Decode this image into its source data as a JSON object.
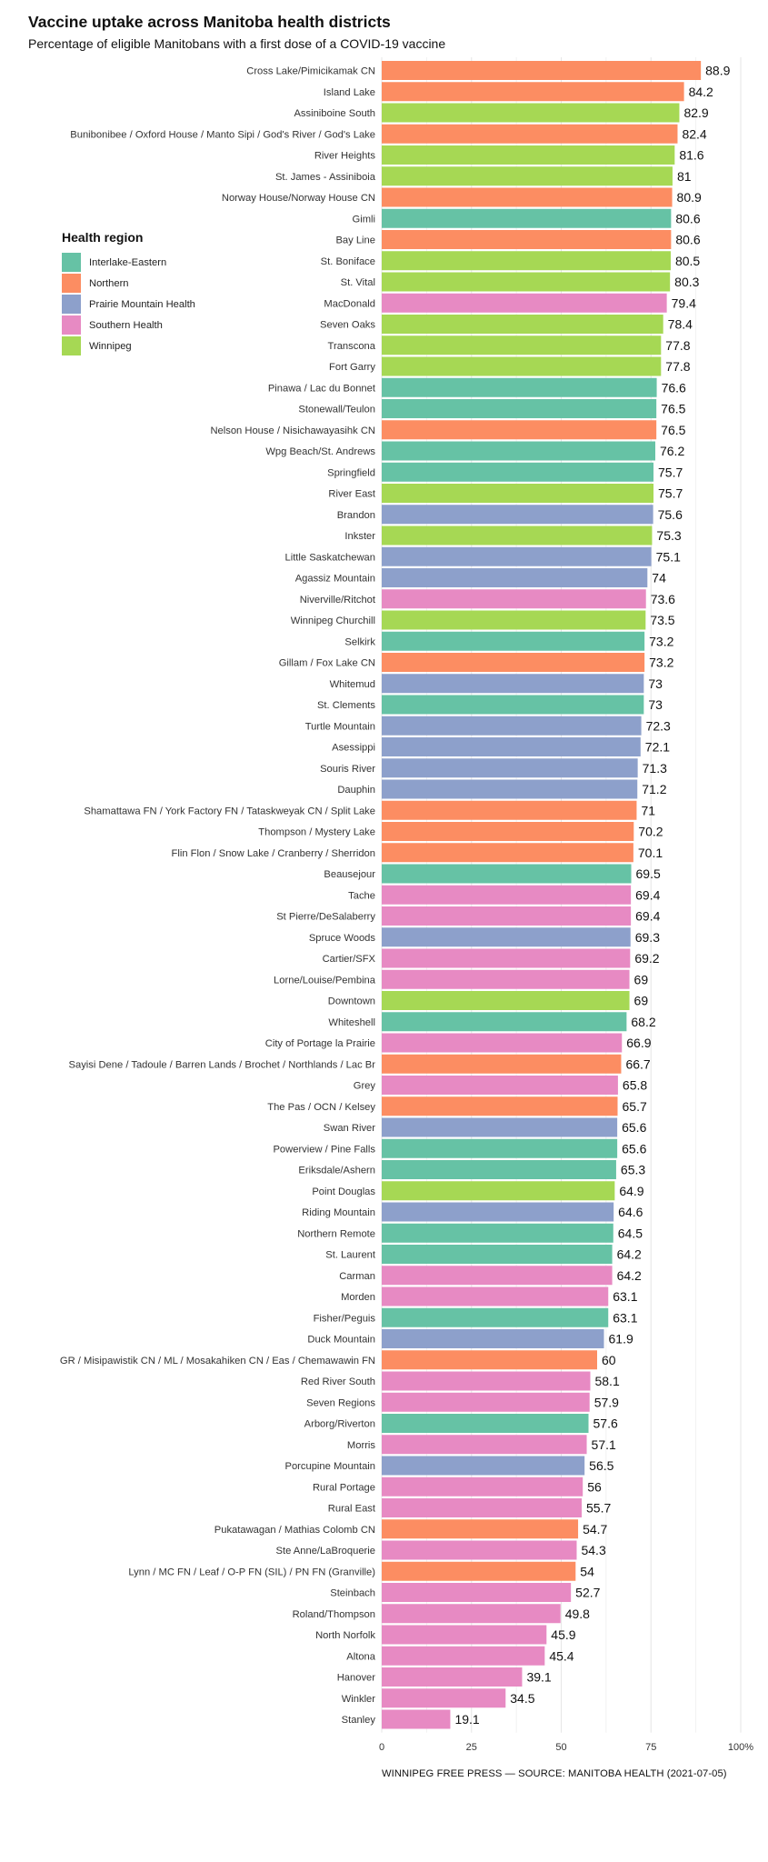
{
  "title": "Vaccine uptake across Manitoba health districts",
  "subtitle": "Percentage of eligible Manitobans with a first dose of a COVID-19 vaccine",
  "source": "WINNIPEG FREE PRESS — SOURCE: MANITOBA HEALTH (2021-07-05)",
  "legend": {
    "title": "Health region",
    "items": [
      {
        "name": "Interlake-Eastern",
        "color": "#66c2a5"
      },
      {
        "name": "Northern",
        "color": "#fc8d62"
      },
      {
        "name": "Prairie Mountain Health",
        "color": "#8da0cb"
      },
      {
        "name": "Southern Health",
        "color": "#e78ac3"
      },
      {
        "name": "Winnipeg",
        "color": "#a6d854"
      }
    ]
  },
  "chart_data": {
    "type": "bar",
    "orientation": "horizontal",
    "title": "Vaccine uptake across Manitoba health districts",
    "subtitle": "Percentage of eligible Manitobans with a first dose of a COVID-19 vaccine",
    "xlim": [
      0,
      100
    ],
    "x_ticks": [
      "0",
      "25",
      "50",
      "75",
      "100%"
    ],
    "grid": "vertical",
    "legend_position": "top-left",
    "region_colors": {
      "Interlake-Eastern": "#66c2a5",
      "Northern": "#fc8d62",
      "Prairie Mountain Health": "#8da0cb",
      "Southern Health": "#e78ac3",
      "Winnipeg": "#a6d854"
    },
    "bars": [
      {
        "district": "Cross Lake/Pimicikamak CN",
        "value": 88.9,
        "value_label": "88.9",
        "region": "Northern"
      },
      {
        "district": "Island Lake",
        "value": 84.2,
        "value_label": "84.2",
        "region": "Northern"
      },
      {
        "district": "Assiniboine South",
        "value": 82.9,
        "value_label": "82.9",
        "region": "Winnipeg"
      },
      {
        "district": "Bunibonibee / Oxford House / Manto Sipi / God's River / God's Lake",
        "value": 82.4,
        "value_label": "82.4",
        "region": "Northern"
      },
      {
        "district": "River Heights",
        "value": 81.6,
        "value_label": "81.6",
        "region": "Winnipeg"
      },
      {
        "district": "St. James - Assiniboia",
        "value": 81,
        "value_label": "81",
        "region": "Winnipeg"
      },
      {
        "district": "Norway House/Norway House CN",
        "value": 80.9,
        "value_label": "80.9",
        "region": "Northern"
      },
      {
        "district": "Gimli",
        "value": 80.6,
        "value_label": "80.6",
        "region": "Interlake-Eastern"
      },
      {
        "district": "Bay Line",
        "value": 80.6,
        "value_label": "80.6",
        "region": "Northern"
      },
      {
        "district": "St. Boniface",
        "value": 80.5,
        "value_label": "80.5",
        "region": "Winnipeg"
      },
      {
        "district": "St. Vital",
        "value": 80.3,
        "value_label": "80.3",
        "region": "Winnipeg"
      },
      {
        "district": "MacDonald",
        "value": 79.4,
        "value_label": "79.4",
        "region": "Southern Health"
      },
      {
        "district": "Seven Oaks",
        "value": 78.4,
        "value_label": "78.4",
        "region": "Winnipeg"
      },
      {
        "district": "Transcona",
        "value": 77.8,
        "value_label": "77.8",
        "region": "Winnipeg"
      },
      {
        "district": "Fort Garry",
        "value": 77.8,
        "value_label": "77.8",
        "region": "Winnipeg"
      },
      {
        "district": "Pinawa / Lac du Bonnet",
        "value": 76.6,
        "value_label": "76.6",
        "region": "Interlake-Eastern"
      },
      {
        "district": "Stonewall/Teulon",
        "value": 76.5,
        "value_label": "76.5",
        "region": "Interlake-Eastern"
      },
      {
        "district": "Nelson House / Nisichawayasihk CN",
        "value": 76.5,
        "value_label": "76.5",
        "region": "Northern"
      },
      {
        "district": "Wpg Beach/St. Andrews",
        "value": 76.2,
        "value_label": "76.2",
        "region": "Interlake-Eastern"
      },
      {
        "district": "Springfield",
        "value": 75.7,
        "value_label": "75.7",
        "region": "Interlake-Eastern"
      },
      {
        "district": "River East",
        "value": 75.7,
        "value_label": "75.7",
        "region": "Winnipeg"
      },
      {
        "district": "Brandon",
        "value": 75.6,
        "value_label": "75.6",
        "region": "Prairie Mountain Health"
      },
      {
        "district": "Inkster",
        "value": 75.3,
        "value_label": "75.3",
        "region": "Winnipeg"
      },
      {
        "district": "Little Saskatchewan",
        "value": 75.1,
        "value_label": "75.1",
        "region": "Prairie Mountain Health"
      },
      {
        "district": "Agassiz Mountain",
        "value": 74,
        "value_label": "74",
        "region": "Prairie Mountain Health"
      },
      {
        "district": "Niverville/Ritchot",
        "value": 73.6,
        "value_label": "73.6",
        "region": "Southern Health"
      },
      {
        "district": "Winnipeg Churchill",
        "value": 73.5,
        "value_label": "73.5",
        "region": "Winnipeg"
      },
      {
        "district": "Selkirk",
        "value": 73.2,
        "value_label": "73.2",
        "region": "Interlake-Eastern"
      },
      {
        "district": "Gillam / Fox Lake CN",
        "value": 73.2,
        "value_label": "73.2",
        "region": "Northern"
      },
      {
        "district": "Whitemud",
        "value": 73,
        "value_label": "73",
        "region": "Prairie Mountain Health"
      },
      {
        "district": "St. Clements",
        "value": 73,
        "value_label": "73",
        "region": "Interlake-Eastern"
      },
      {
        "district": "Turtle Mountain",
        "value": 72.3,
        "value_label": "72.3",
        "region": "Prairie Mountain Health"
      },
      {
        "district": "Asessippi",
        "value": 72.1,
        "value_label": "72.1",
        "region": "Prairie Mountain Health"
      },
      {
        "district": "Souris River",
        "value": 71.3,
        "value_label": "71.3",
        "region": "Prairie Mountain Health"
      },
      {
        "district": "Dauphin",
        "value": 71.2,
        "value_label": "71.2",
        "region": "Prairie Mountain Health"
      },
      {
        "district": "Shamattawa FN / York Factory FN  / Tataskweyak CN / Split Lake",
        "value": 71,
        "value_label": "71",
        "region": "Northern"
      },
      {
        "district": "Thompson / Mystery Lake",
        "value": 70.2,
        "value_label": "70.2",
        "region": "Northern"
      },
      {
        "district": "Flin Flon / Snow Lake / Cranberry / Sherridon",
        "value": 70.1,
        "value_label": "70.1",
        "region": "Northern"
      },
      {
        "district": "Beausejour",
        "value": 69.5,
        "value_label": "69.5",
        "region": "Interlake-Eastern"
      },
      {
        "district": "Tache",
        "value": 69.4,
        "value_label": "69.4",
        "region": "Southern Health"
      },
      {
        "district": "St Pierre/DeSalaberry",
        "value": 69.4,
        "value_label": "69.4",
        "region": "Southern Health"
      },
      {
        "district": "Spruce Woods",
        "value": 69.3,
        "value_label": "69.3",
        "region": "Prairie Mountain Health"
      },
      {
        "district": "Cartier/SFX",
        "value": 69.2,
        "value_label": "69.2",
        "region": "Southern Health"
      },
      {
        "district": "Lorne/Louise/Pembina",
        "value": 69,
        "value_label": "69",
        "region": "Southern Health"
      },
      {
        "district": "Downtown",
        "value": 69,
        "value_label": "69",
        "region": "Winnipeg"
      },
      {
        "district": "Whiteshell",
        "value": 68.2,
        "value_label": "68.2",
        "region": "Interlake-Eastern"
      },
      {
        "district": "City of Portage la Prairie",
        "value": 66.9,
        "value_label": "66.9",
        "region": "Southern Health"
      },
      {
        "district": "Sayisi Dene / Tadoule / Barren Lands / Brochet / Northlands / Lac Br",
        "value": 66.7,
        "value_label": "66.7",
        "region": "Northern"
      },
      {
        "district": "Grey",
        "value": 65.8,
        "value_label": "65.8",
        "region": "Southern Health"
      },
      {
        "district": "The Pas / OCN / Kelsey",
        "value": 65.7,
        "value_label": "65.7",
        "region": "Northern"
      },
      {
        "district": "Swan River",
        "value": 65.6,
        "value_label": "65.6",
        "region": "Prairie Mountain Health"
      },
      {
        "district": "Powerview / Pine Falls",
        "value": 65.6,
        "value_label": "65.6",
        "region": "Interlake-Eastern"
      },
      {
        "district": "Eriksdale/Ashern",
        "value": 65.3,
        "value_label": "65.3",
        "region": "Interlake-Eastern"
      },
      {
        "district": "Point Douglas",
        "value": 64.9,
        "value_label": "64.9",
        "region": "Winnipeg"
      },
      {
        "district": "Riding Mountain",
        "value": 64.6,
        "value_label": "64.6",
        "region": "Prairie Mountain Health"
      },
      {
        "district": "Northern Remote",
        "value": 64.5,
        "value_label": "64.5",
        "region": "Interlake-Eastern"
      },
      {
        "district": "St. Laurent",
        "value": 64.2,
        "value_label": "64.2",
        "region": "Interlake-Eastern"
      },
      {
        "district": "Carman",
        "value": 64.2,
        "value_label": "64.2",
        "region": "Southern Health"
      },
      {
        "district": "Morden",
        "value": 63.1,
        "value_label": "63.1",
        "region": "Southern Health"
      },
      {
        "district": "Fisher/Peguis",
        "value": 63.1,
        "value_label": "63.1",
        "region": "Interlake-Eastern"
      },
      {
        "district": "Duck Mountain",
        "value": 61.9,
        "value_label": "61.9",
        "region": "Prairie Mountain Health"
      },
      {
        "district": "GR / Misipawistik CN / ML / Mosakahiken CN / Eas / Chemawawin FN",
        "value": 60,
        "value_label": "60",
        "region": "Northern"
      },
      {
        "district": "Red River South",
        "value": 58.1,
        "value_label": "58.1",
        "region": "Southern Health"
      },
      {
        "district": "Seven Regions",
        "value": 57.9,
        "value_label": "57.9",
        "region": "Southern Health"
      },
      {
        "district": "Arborg/Riverton",
        "value": 57.6,
        "value_label": "57.6",
        "region": "Interlake-Eastern"
      },
      {
        "district": "Morris",
        "value": 57.1,
        "value_label": "57.1",
        "region": "Southern Health"
      },
      {
        "district": "Porcupine Mountain",
        "value": 56.5,
        "value_label": "56.5",
        "region": "Prairie Mountain Health"
      },
      {
        "district": "Rural Portage",
        "value": 56,
        "value_label": "56",
        "region": "Southern Health"
      },
      {
        "district": "Rural East",
        "value": 55.7,
        "value_label": "55.7",
        "region": "Southern Health"
      },
      {
        "district": "Pukatawagan / Mathias Colomb CN",
        "value": 54.7,
        "value_label": "54.7",
        "region": "Northern"
      },
      {
        "district": "Ste Anne/LaBroquerie",
        "value": 54.3,
        "value_label": "54.3",
        "region": "Southern Health"
      },
      {
        "district": "Lynn / MC FN / Leaf / O-P FN (SIL) / PN FN (Granville)",
        "value": 54,
        "value_label": "54",
        "region": "Northern"
      },
      {
        "district": "Steinbach",
        "value": 52.7,
        "value_label": "52.7",
        "region": "Southern Health"
      },
      {
        "district": "Roland/Thompson",
        "value": 49.8,
        "value_label": "49.8",
        "region": "Southern Health"
      },
      {
        "district": "North Norfolk",
        "value": 45.9,
        "value_label": "45.9",
        "region": "Southern Health"
      },
      {
        "district": "Altona",
        "value": 45.4,
        "value_label": "45.4",
        "region": "Southern Health"
      },
      {
        "district": "Hanover",
        "value": 39.1,
        "value_label": "39.1",
        "region": "Southern Health"
      },
      {
        "district": "Winkler",
        "value": 34.5,
        "value_label": "34.5",
        "region": "Southern Health"
      },
      {
        "district": "Stanley",
        "value": 19.1,
        "value_label": "19.1",
        "region": "Southern Health"
      }
    ]
  }
}
